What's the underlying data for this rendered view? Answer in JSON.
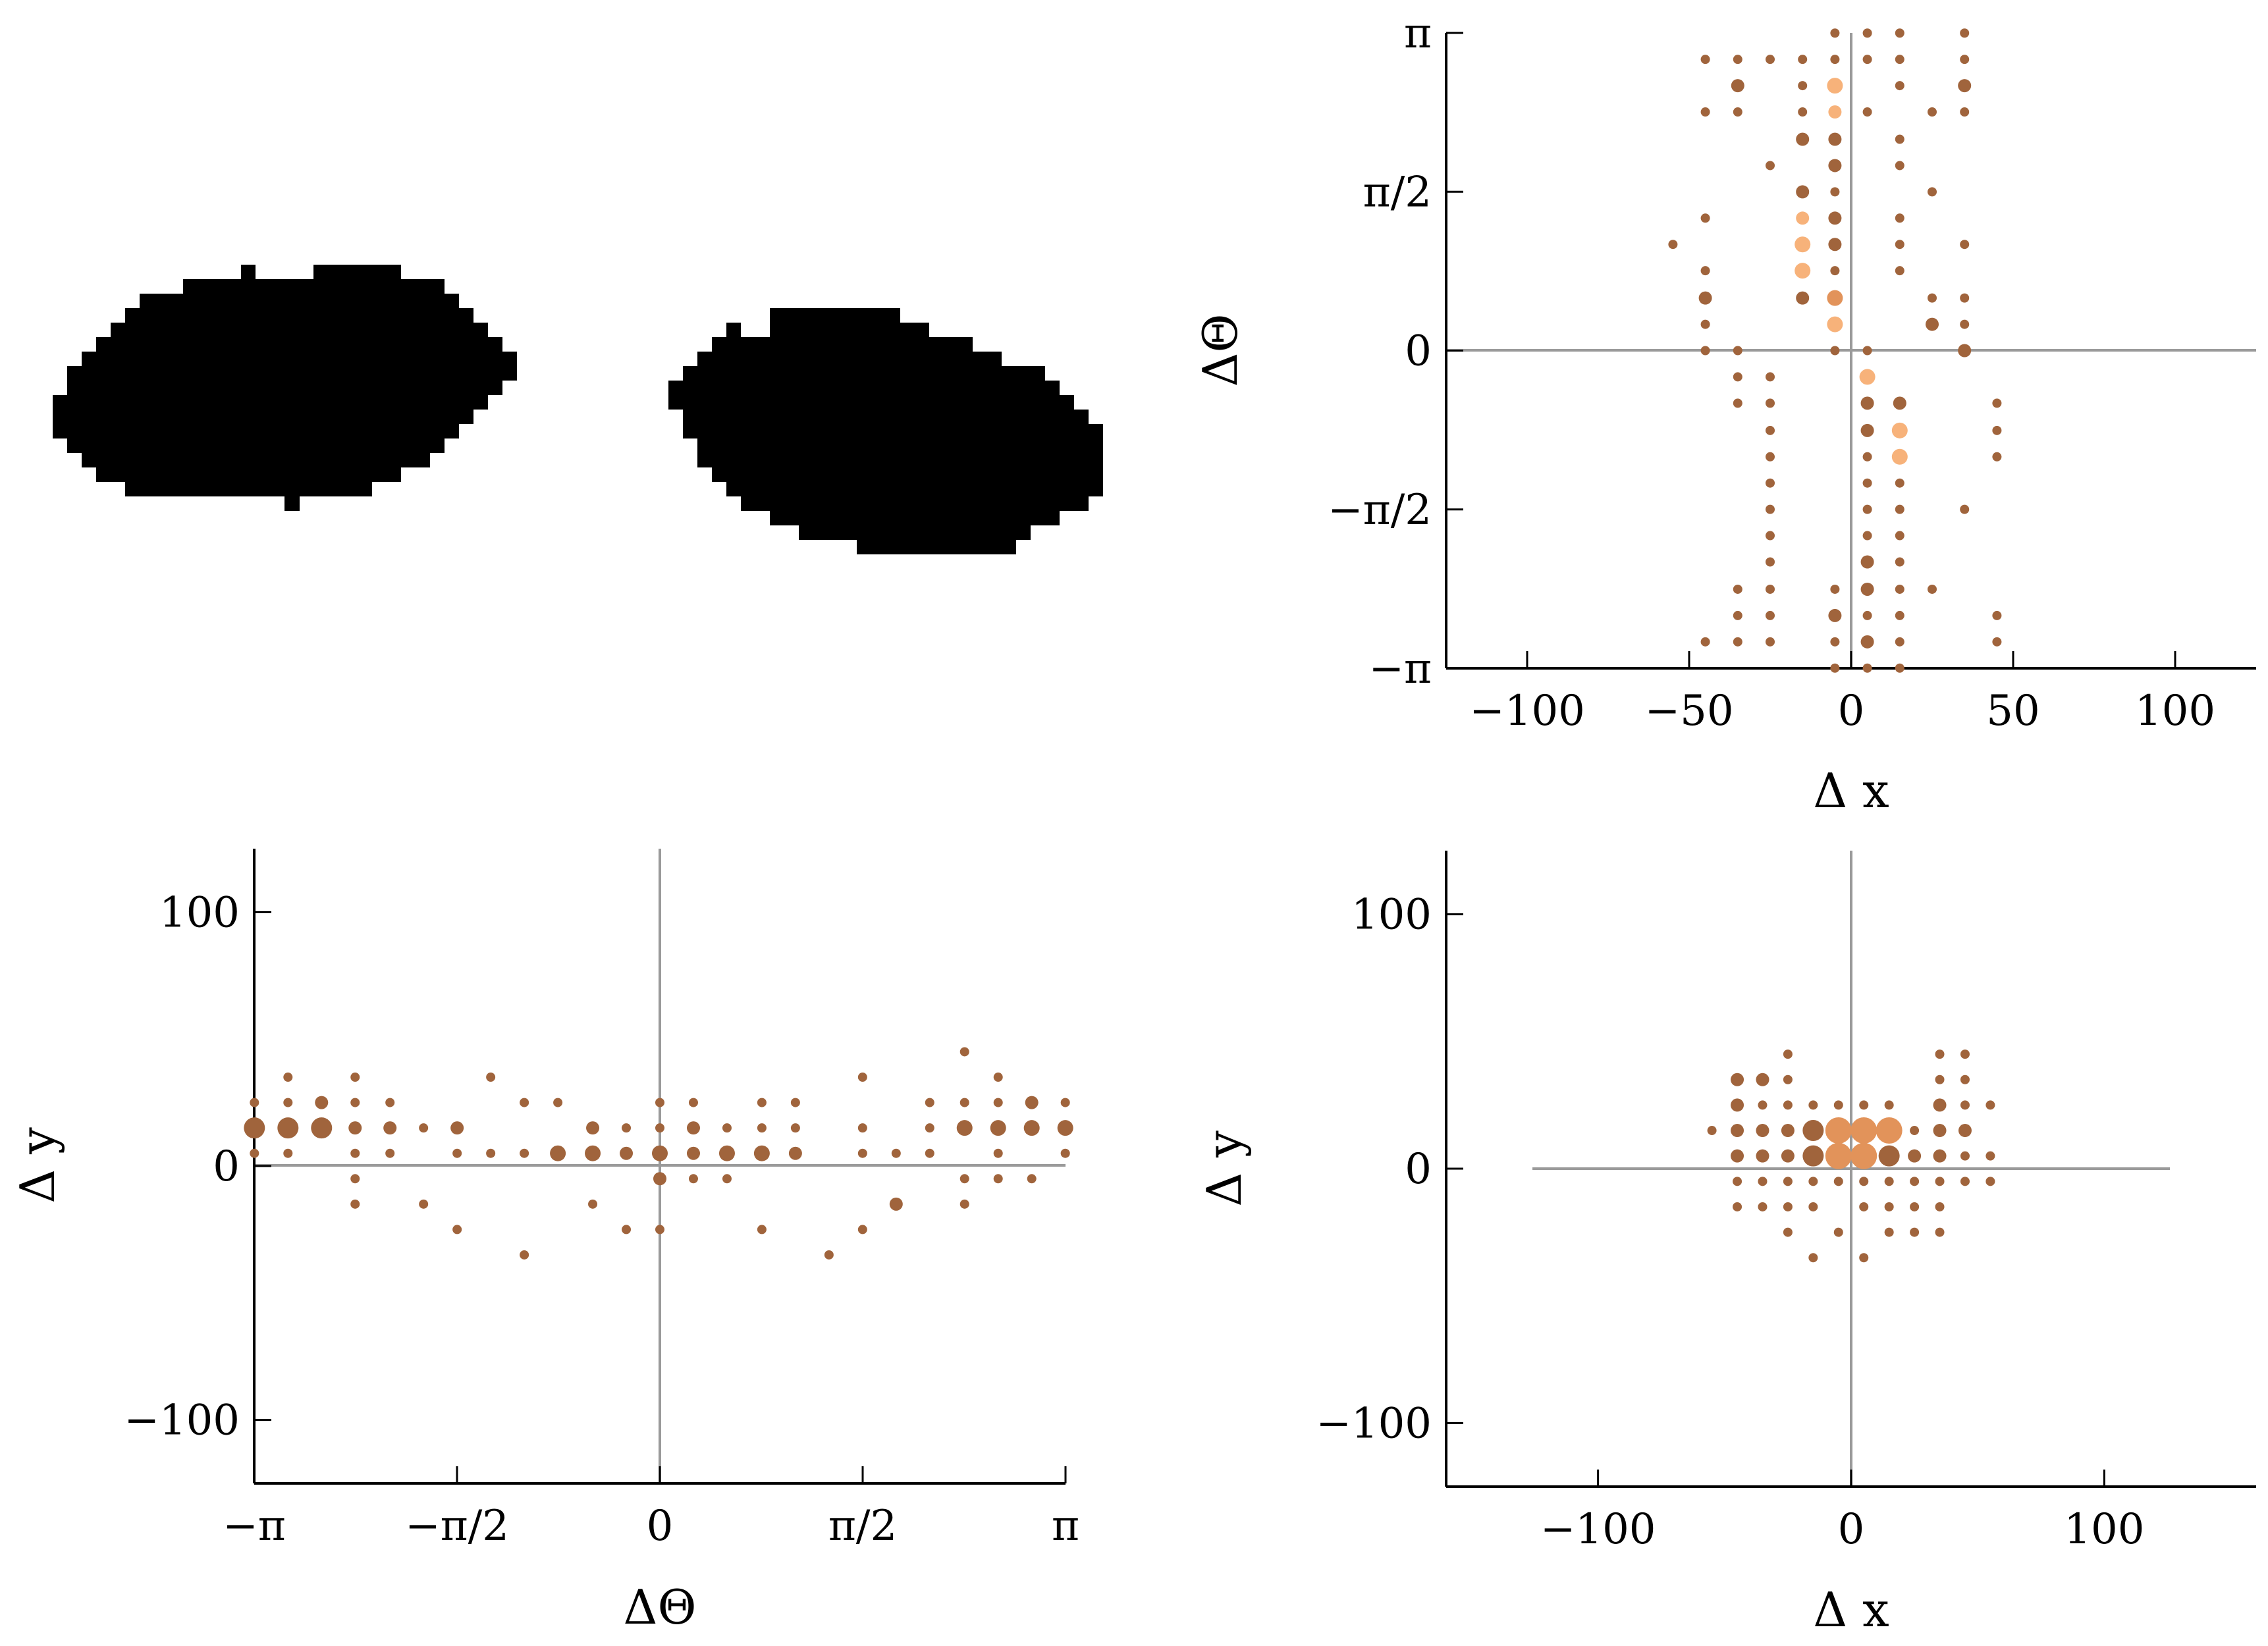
{
  "colors": {
    "dark": "#A0643C",
    "mid": "#E2935A",
    "light": "#F7B27A",
    "zero_line": "#9A9A9A",
    "blob": "#000000"
  },
  "chart_data": [
    {
      "type": "scatter",
      "xlabel": "Δ x",
      "ylabel": "ΔΘ",
      "xlim": [
        -125,
        125
      ],
      "ylim": [
        -3.1416,
        3.1416
      ],
      "xticks": [
        -100,
        -50,
        0,
        50,
        100
      ],
      "xtick_labels": [
        "−100",
        "−50",
        "0",
        "50",
        "100"
      ],
      "yticks": [
        -3.1416,
        -1.5708,
        0,
        1.5708,
        3.1416
      ],
      "ytick_labels": [
        "−π",
        "−π/2",
        "0",
        "π/2",
        "π"
      ],
      "grid": false,
      "points": [
        [
          -5,
          3.14,
          1
        ],
        [
          5,
          3.14,
          1
        ],
        [
          15,
          3.14,
          1
        ],
        [
          35,
          3.14,
          1
        ],
        [
          -45,
          2.88,
          1
        ],
        [
          -35,
          2.88,
          1
        ],
        [
          -25,
          2.88,
          1
        ],
        [
          -15,
          2.88,
          1
        ],
        [
          -5,
          2.88,
          1
        ],
        [
          5,
          2.88,
          1
        ],
        [
          15,
          2.88,
          1
        ],
        [
          35,
          2.88,
          1
        ],
        [
          -35,
          2.62,
          2
        ],
        [
          -15,
          2.62,
          1
        ],
        [
          -5,
          2.62,
          3
        ],
        [
          15,
          2.62,
          1
        ],
        [
          35,
          2.62,
          2
        ],
        [
          -45,
          2.36,
          1
        ],
        [
          -35,
          2.36,
          1
        ],
        [
          -15,
          2.36,
          1
        ],
        [
          -5,
          2.36,
          2
        ],
        [
          5,
          2.36,
          1
        ],
        [
          25,
          2.36,
          1
        ],
        [
          35,
          2.36,
          1
        ],
        [
          -15,
          2.09,
          2
        ],
        [
          -5,
          2.09,
          2
        ],
        [
          15,
          2.09,
          1
        ],
        [
          -25,
          1.83,
          1
        ],
        [
          -5,
          1.83,
          2
        ],
        [
          15,
          1.83,
          1
        ],
        [
          -15,
          1.57,
          2
        ],
        [
          -5,
          1.57,
          1
        ],
        [
          25,
          1.57,
          1
        ],
        [
          -15,
          1.31,
          2
        ],
        [
          -5,
          1.31,
          2
        ],
        [
          15,
          1.31,
          1
        ],
        [
          -45,
          1.31,
          1
        ],
        [
          -15,
          1.05,
          3
        ],
        [
          -5,
          1.05,
          2
        ],
        [
          15,
          1.05,
          1
        ],
        [
          35,
          1.05,
          1
        ],
        [
          -55,
          1.05,
          1
        ],
        [
          -45,
          0.79,
          1
        ],
        [
          -15,
          0.79,
          3
        ],
        [
          -5,
          0.79,
          1
        ],
        [
          15,
          0.79,
          1
        ],
        [
          -45,
          0.52,
          2
        ],
        [
          -15,
          0.52,
          2
        ],
        [
          -5,
          0.52,
          3
        ],
        [
          25,
          0.52,
          1
        ],
        [
          35,
          0.52,
          1
        ],
        [
          -45,
          0.26,
          1
        ],
        [
          -5,
          0.26,
          3
        ],
        [
          25,
          0.26,
          2
        ],
        [
          35,
          0.26,
          1
        ],
        [
          -45,
          0,
          1
        ],
        [
          -35,
          0,
          1
        ],
        [
          -5,
          0,
          1
        ],
        [
          5,
          0,
          1
        ],
        [
          35,
          0,
          2
        ],
        [
          -35,
          -0.26,
          1
        ],
        [
          -25,
          -0.26,
          1
        ],
        [
          5,
          -0.26,
          3
        ],
        [
          -35,
          -0.52,
          1
        ],
        [
          -25,
          -0.52,
          1
        ],
        [
          5,
          -0.52,
          2
        ],
        [
          15,
          -0.52,
          2
        ],
        [
          45,
          -0.52,
          1
        ],
        [
          -25,
          -0.79,
          1
        ],
        [
          5,
          -0.79,
          2
        ],
        [
          15,
          -0.79,
          3
        ],
        [
          45,
          -0.79,
          1
        ],
        [
          -25,
          -1.05,
          1
        ],
        [
          5,
          -1.05,
          1
        ],
        [
          15,
          -1.05,
          3
        ],
        [
          45,
          -1.05,
          1
        ],
        [
          -25,
          -1.31,
          1
        ],
        [
          5,
          -1.31,
          1
        ],
        [
          15,
          -1.31,
          1
        ],
        [
          -25,
          -1.57,
          1
        ],
        [
          5,
          -1.57,
          1
        ],
        [
          15,
          -1.57,
          1
        ],
        [
          35,
          -1.57,
          1
        ],
        [
          -25,
          -1.83,
          1
        ],
        [
          5,
          -1.83,
          1
        ],
        [
          15,
          -1.83,
          1
        ],
        [
          -25,
          -2.09,
          1
        ],
        [
          5,
          -2.09,
          2
        ],
        [
          15,
          -2.09,
          1
        ],
        [
          -25,
          -2.36,
          1
        ],
        [
          5,
          -2.36,
          2
        ],
        [
          15,
          -2.36,
          1
        ],
        [
          -35,
          -2.36,
          1
        ],
        [
          -5,
          -2.36,
          1
        ],
        [
          25,
          -2.36,
          1
        ],
        [
          -35,
          -2.62,
          1
        ],
        [
          -25,
          -2.62,
          1
        ],
        [
          -5,
          -2.62,
          2
        ],
        [
          5,
          -2.62,
          1
        ],
        [
          15,
          -2.62,
          1
        ],
        [
          45,
          -2.62,
          1
        ],
        [
          -45,
          -2.88,
          1
        ],
        [
          -35,
          -2.88,
          1
        ],
        [
          -25,
          -2.88,
          1
        ],
        [
          -5,
          -2.88,
          1
        ],
        [
          5,
          -2.88,
          2
        ],
        [
          15,
          -2.88,
          1
        ],
        [
          45,
          -2.88,
          1
        ],
        [
          -5,
          -3.14,
          1
        ],
        [
          5,
          -3.14,
          1
        ],
        [
          15,
          -3.14,
          1
        ]
      ]
    },
    {
      "type": "scatter",
      "xlabel": "ΔΘ",
      "ylabel": "Δ y",
      "xlim": [
        -3.1416,
        3.1416
      ],
      "ylim": [
        -125,
        125
      ],
      "xticks": [
        -3.1416,
        -1.5708,
        0,
        1.5708,
        3.1416
      ],
      "xtick_labels": [
        "−π",
        "−π/2",
        "0",
        "π/2",
        "π"
      ],
      "yticks": [
        -100,
        0,
        100
      ],
      "ytick_labels": [
        "−100",
        "0",
        "100"
      ],
      "grid": false,
      "points": [
        [
          -3.14,
          25,
          1
        ],
        [
          -3.14,
          15,
          4
        ],
        [
          -3.14,
          5,
          1
        ],
        [
          -2.88,
          35,
          1
        ],
        [
          -2.88,
          25,
          1
        ],
        [
          -2.88,
          15,
          4
        ],
        [
          -2.88,
          5,
          1
        ],
        [
          -2.62,
          25,
          2
        ],
        [
          -2.62,
          15,
          4
        ],
        [
          -2.36,
          35,
          1
        ],
        [
          -2.36,
          25,
          1
        ],
        [
          -2.36,
          15,
          2
        ],
        [
          -2.36,
          5,
          1
        ],
        [
          -2.36,
          -5,
          1
        ],
        [
          -2.36,
          -15,
          1
        ],
        [
          -2.09,
          25,
          1
        ],
        [
          -2.09,
          15,
          2
        ],
        [
          -2.09,
          5,
          1
        ],
        [
          -1.83,
          15,
          1
        ],
        [
          -1.83,
          -15,
          1
        ],
        [
          -1.57,
          15,
          2
        ],
        [
          -1.57,
          5,
          1
        ],
        [
          -1.57,
          -25,
          1
        ],
        [
          -1.31,
          5,
          1
        ],
        [
          -1.31,
          35,
          1
        ],
        [
          -1.05,
          25,
          1
        ],
        [
          -1.05,
          5,
          1
        ],
        [
          -1.05,
          -35,
          1
        ],
        [
          -0.79,
          25,
          1
        ],
        [
          -0.79,
          5,
          3
        ],
        [
          -0.52,
          15,
          2
        ],
        [
          -0.52,
          5,
          3
        ],
        [
          -0.52,
          -15,
          1
        ],
        [
          -0.26,
          15,
          1
        ],
        [
          -0.26,
          5,
          2
        ],
        [
          -0.26,
          -25,
          1
        ],
        [
          0,
          25,
          1
        ],
        [
          0,
          15,
          1
        ],
        [
          0,
          5,
          3
        ],
        [
          0,
          -5,
          2
        ],
        [
          0,
          -25,
          1
        ],
        [
          0.26,
          25,
          1
        ],
        [
          0.26,
          15,
          2
        ],
        [
          0.26,
          5,
          2
        ],
        [
          0.26,
          -5,
          1
        ],
        [
          0.52,
          15,
          1
        ],
        [
          0.52,
          5,
          3
        ],
        [
          0.52,
          -5,
          1
        ],
        [
          0.79,
          25,
          1
        ],
        [
          0.79,
          15,
          1
        ],
        [
          0.79,
          5,
          3
        ],
        [
          0.79,
          -25,
          1
        ],
        [
          1.05,
          25,
          1
        ],
        [
          1.05,
          15,
          1
        ],
        [
          1.05,
          5,
          2
        ],
        [
          1.31,
          -35,
          1
        ],
        [
          1.57,
          35,
          1
        ],
        [
          1.57,
          15,
          1
        ],
        [
          1.57,
          5,
          1
        ],
        [
          1.57,
          -25,
          1
        ],
        [
          1.83,
          5,
          1
        ],
        [
          1.83,
          -15,
          2
        ],
        [
          2.09,
          25,
          1
        ],
        [
          2.09,
          15,
          1
        ],
        [
          2.09,
          5,
          1
        ],
        [
          2.36,
          45,
          1
        ],
        [
          2.36,
          25,
          1
        ],
        [
          2.36,
          15,
          3
        ],
        [
          2.36,
          -5,
          1
        ],
        [
          2.36,
          -15,
          1
        ],
        [
          2.62,
          35,
          1
        ],
        [
          2.62,
          25,
          1
        ],
        [
          2.62,
          15,
          3
        ],
        [
          2.62,
          5,
          1
        ],
        [
          2.62,
          -5,
          1
        ],
        [
          2.88,
          25,
          2
        ],
        [
          2.88,
          15,
          3
        ],
        [
          2.88,
          -5,
          1
        ],
        [
          3.14,
          25,
          1
        ],
        [
          3.14,
          15,
          3
        ],
        [
          3.14,
          5,
          1
        ]
      ]
    },
    {
      "type": "scatter",
      "xlabel": "Δ x",
      "ylabel": "Δ y",
      "xlim": [
        -160,
        160
      ],
      "ylim": [
        -125,
        125
      ],
      "xticks": [
        -100,
        0,
        100
      ],
      "xtick_labels": [
        "−100",
        "0",
        "100"
      ],
      "yticks": [
        -100,
        0,
        100
      ],
      "ytick_labels": [
        "−100",
        "0",
        "100"
      ],
      "grid": false,
      "points": [
        [
          -25,
          45,
          1
        ],
        [
          35,
          45,
          1
        ],
        [
          45,
          45,
          1
        ],
        [
          -45,
          35,
          2
        ],
        [
          -35,
          35,
          2
        ],
        [
          -25,
          35,
          1
        ],
        [
          35,
          35,
          1
        ],
        [
          45,
          35,
          1
        ],
        [
          -45,
          25,
          2
        ],
        [
          -35,
          25,
          1
        ],
        [
          -25,
          25,
          1
        ],
        [
          -15,
          25,
          1
        ],
        [
          -5,
          25,
          1
        ],
        [
          5,
          25,
          1
        ],
        [
          15,
          25,
          1
        ],
        [
          35,
          25,
          2
        ],
        [
          45,
          25,
          1
        ],
        [
          55,
          25,
          1
        ],
        [
          -55,
          15,
          1
        ],
        [
          -45,
          15,
          2
        ],
        [
          -35,
          15,
          2
        ],
        [
          -25,
          15,
          2
        ],
        [
          -15,
          15,
          4
        ],
        [
          -5,
          15,
          5
        ],
        [
          5,
          15,
          5
        ],
        [
          15,
          15,
          5
        ],
        [
          25,
          15,
          1
        ],
        [
          35,
          15,
          2
        ],
        [
          45,
          15,
          2
        ],
        [
          -45,
          5,
          2
        ],
        [
          -35,
          5,
          2
        ],
        [
          -25,
          5,
          2
        ],
        [
          -15,
          5,
          4
        ],
        [
          -5,
          5,
          5
        ],
        [
          5,
          5,
          5
        ],
        [
          15,
          5,
          4
        ],
        [
          25,
          5,
          2
        ],
        [
          35,
          5,
          2
        ],
        [
          45,
          5,
          1
        ],
        [
          55,
          5,
          1
        ],
        [
          -45,
          -5,
          1
        ],
        [
          -35,
          -5,
          1
        ],
        [
          -25,
          -5,
          1
        ],
        [
          -15,
          -5,
          1
        ],
        [
          -5,
          -5,
          1
        ],
        [
          5,
          -5,
          1
        ],
        [
          15,
          -5,
          1
        ],
        [
          25,
          -5,
          1
        ],
        [
          35,
          -5,
          1
        ],
        [
          45,
          -5,
          1
        ],
        [
          55,
          -5,
          1
        ],
        [
          -45,
          -15,
          1
        ],
        [
          -35,
          -15,
          1
        ],
        [
          -25,
          -15,
          1
        ],
        [
          -15,
          -15,
          1
        ],
        [
          5,
          -15,
          1
        ],
        [
          15,
          -15,
          1
        ],
        [
          25,
          -15,
          1
        ],
        [
          35,
          -15,
          1
        ],
        [
          -25,
          -25,
          1
        ],
        [
          -5,
          -25,
          1
        ],
        [
          15,
          -25,
          1
        ],
        [
          25,
          -25,
          1
        ],
        [
          35,
          -25,
          1
        ],
        [
          -15,
          -35,
          1
        ],
        [
          5,
          -35,
          1
        ]
      ]
    }
  ]
}
